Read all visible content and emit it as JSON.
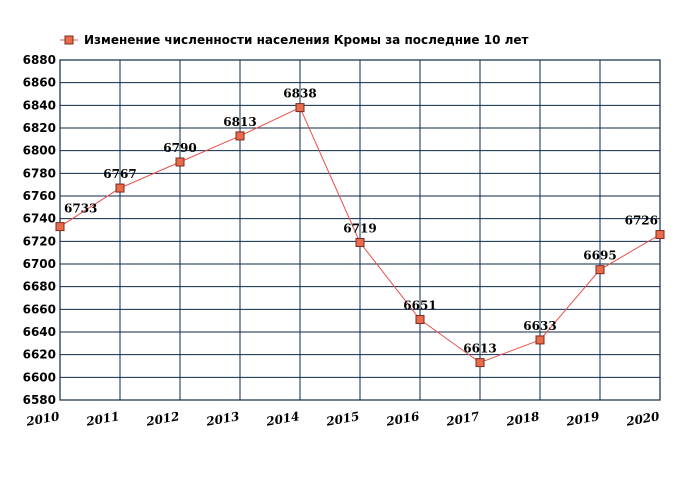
{
  "chart_data": {
    "type": "line",
    "title": "Изменение численности населения Кромы за последние 10 лет",
    "x": [
      "2010",
      "2011",
      "2012",
      "2013",
      "2014",
      "2015",
      "2016",
      "2017",
      "2018",
      "2019",
      "2020"
    ],
    "series": [
      {
        "name": "Изменение численности населения Кромы за последние 10 лет",
        "values": [
          6733,
          6767,
          6790,
          6813,
          6838,
          6719,
          6651,
          6613,
          6633,
          6695,
          6726
        ],
        "labels": [
          "6733",
          "6767",
          "6790",
          "6813",
          "6838",
          "6719",
          "6651",
          "6613",
          "6633",
          "6695",
          "6726"
        ]
      }
    ],
    "ylim": [
      6580,
      6880
    ],
    "yticks": [
      "6580",
      "6600",
      "6620",
      "6640",
      "6660",
      "6680",
      "6700",
      "6720",
      "6740",
      "6760",
      "6780",
      "6800",
      "6820",
      "6840",
      "6860",
      "6880"
    ],
    "grid": true,
    "legend": "top-left",
    "colors": {
      "line": "#e8504a",
      "marker": "#e86b4a",
      "marker_border": "#7a2a20",
      "grid": "#0f2a4a"
    }
  }
}
